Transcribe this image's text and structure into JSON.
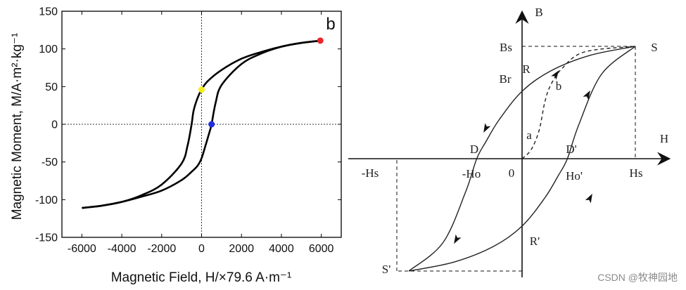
{
  "chart_data": [
    {
      "type": "line",
      "panel_label": "b",
      "xlabel": "Magnetic Field, H/×79.6 A·m⁻¹",
      "ylabel": "Magnetic Moment, M/A·m²·kg⁻¹",
      "xlim": [
        -7000,
        7000
      ],
      "ylim": [
        -150,
        150
      ],
      "xticks": [
        -6000,
        -4000,
        -2000,
        0,
        2000,
        4000,
        6000
      ],
      "yticks": [
        150,
        100,
        50,
        0,
        -50,
        -100,
        -150
      ],
      "xtick_labels": [
        "-6000",
        "-4000",
        "-2000",
        "0",
        "2000",
        "4000",
        "6000"
      ],
      "ytick_labels": [
        "150",
        "100",
        "50",
        "0",
        "-50",
        "-100",
        "-150"
      ],
      "series": [
        {
          "name": "descending branch",
          "x": [
            6000,
            5000,
            4000,
            3000,
            2000,
            1000,
            300,
            0,
            -200,
            -400,
            -500,
            -700,
            -1000,
            -2000,
            -3000,
            -4000,
            -5000,
            -6000
          ],
          "y": [
            111,
            108,
            103,
            96,
            87,
            72,
            57,
            46,
            35,
            18,
            0,
            -28,
            -52,
            -80,
            -94,
            -103,
            -108,
            -111
          ]
        },
        {
          "name": "ascending branch",
          "x": [
            -6000,
            -5000,
            -4000,
            -3000,
            -2000,
            -1000,
            -500,
            -200,
            0,
            200,
            400,
            500,
            700,
            1000,
            2000,
            3000,
            4000,
            5000,
            6000
          ],
          "y": [
            -111,
            -108,
            -103,
            -96,
            -88,
            -74,
            -63,
            -55,
            -45,
            -28,
            -10,
            0,
            28,
            52,
            80,
            94,
            103,
            108,
            111
          ]
        }
      ],
      "markers": [
        {
          "name": "saturation point",
          "x": 5950,
          "y": 111,
          "color": "#e8262b"
        },
        {
          "name": "remanence point",
          "x": 0,
          "y": 46,
          "color": "#f3ee1c"
        },
        {
          "name": "coercivity point",
          "x": 500,
          "y": 0,
          "color": "#1f2de0"
        }
      ],
      "reference_lines": {
        "x_zero": true,
        "y_zero": true,
        "style": "dotted"
      }
    },
    {
      "type": "line",
      "title": "",
      "x_axis_label": "H",
      "y_axis_label": "B",
      "xlim": [
        -1,
        1
      ],
      "ylim": [
        -1,
        1
      ],
      "series": [
        {
          "name": "upper branch",
          "x": [
            1,
            0.6,
            0.25,
            0,
            -0.2,
            -0.32,
            -0.4,
            -0.5,
            -0.7,
            -1
          ],
          "y": [
            1,
            0.92,
            0.78,
            0.6,
            0.35,
            0.15,
            0,
            -0.3,
            -0.75,
            -1
          ]
        },
        {
          "name": "lower branch",
          "x": [
            -1,
            -0.6,
            -0.25,
            0,
            0.2,
            0.32,
            0.4,
            0.5,
            0.7,
            1
          ],
          "y": [
            -1,
            -0.92,
            -0.78,
            -0.6,
            -0.35,
            -0.15,
            0,
            0.3,
            0.75,
            1
          ]
        },
        {
          "name": "initial magnetization curve",
          "style": "dashed",
          "x": [
            0,
            0.08,
            0.15,
            0.2,
            0.25,
            0.35,
            0.55,
            1
          ],
          "y": [
            0,
            0.08,
            0.25,
            0.5,
            0.65,
            0.8,
            0.95,
            1
          ]
        }
      ],
      "point_labels": [
        {
          "text": "S",
          "x": 1.15,
          "y": 1
        },
        {
          "text": "Bs",
          "x": -0.13,
          "y": 1
        },
        {
          "text": "R",
          "x": 0.03,
          "y": 0.68
        },
        {
          "text": "Br",
          "x": -0.13,
          "y": 0.6
        },
        {
          "text": "b",
          "x": 0.25,
          "y": 0.55
        },
        {
          "text": "a",
          "x": 0.05,
          "y": 0.2
        },
        {
          "text": "D",
          "x": -0.4,
          "y": 0.07
        },
        {
          "text": "D'",
          "x": 0.43,
          "y": 0.07
        },
        {
          "text": "-Ho",
          "x": -0.4,
          "y": -0.13
        },
        {
          "text": "0",
          "x": -0.08,
          "y": -0.13
        },
        {
          "text": "Ho'",
          "x": 0.48,
          "y": -0.15
        },
        {
          "text": "Hs",
          "x": 1,
          "y": -0.13
        },
        {
          "text": "-Hs",
          "x": -1.2,
          "y": -0.13
        },
        {
          "text": "R'",
          "x": 0.1,
          "y": -0.68
        },
        {
          "text": "S'",
          "x": -1.1,
          "y": -0.98
        }
      ],
      "watermark": "CSDN @牧神园地"
    }
  ]
}
